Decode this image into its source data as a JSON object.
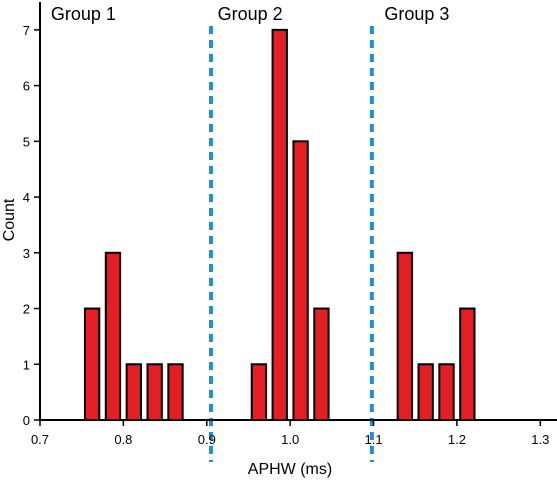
{
  "chart_data": {
    "type": "bar",
    "xlabel": "APHW (ms)",
    "ylabel": "Count",
    "xlim": [
      0.7,
      1.32
    ],
    "ylim": [
      0,
      7.5
    ],
    "x_ticks": [
      "0.7",
      "0.8",
      "0.9",
      "1.0",
      "1.1",
      "1.2",
      "1.3"
    ],
    "x_tick_values": [
      0.7,
      0.8,
      0.9,
      1.0,
      1.1,
      1.2,
      1.3
    ],
    "y_ticks": [
      "0",
      "1",
      "2",
      "3",
      "4",
      "5",
      "6",
      "7"
    ],
    "y_tick_values": [
      0,
      1,
      2,
      3,
      4,
      5,
      6,
      7
    ],
    "bin_width": 0.02,
    "bars": [
      {
        "x": 0.7625,
        "value": 2
      },
      {
        "x": 0.7875,
        "value": 3
      },
      {
        "x": 0.8125,
        "value": 1
      },
      {
        "x": 0.8375,
        "value": 1
      },
      {
        "x": 0.8625,
        "value": 1
      },
      {
        "x": 0.9625,
        "value": 1
      },
      {
        "x": 0.9875,
        "value": 7
      },
      {
        "x": 1.0125,
        "value": 5
      },
      {
        "x": 1.0375,
        "value": 2
      },
      {
        "x": 1.1375,
        "value": 3
      },
      {
        "x": 1.1625,
        "value": 1
      },
      {
        "x": 1.1875,
        "value": 1
      },
      {
        "x": 1.2125,
        "value": 2
      }
    ],
    "dividers": [
      0.905,
      1.098
    ],
    "groups": [
      {
        "label": "Group 1",
        "x": 0.8
      },
      {
        "label": "Group 2",
        "x": 1.0
      },
      {
        "label": "Group 3",
        "x": 1.2
      }
    ],
    "bar_color": "#e31e24",
    "bar_edge_color": "#000000",
    "divider_color": "#1e90d8",
    "grid": false
  }
}
